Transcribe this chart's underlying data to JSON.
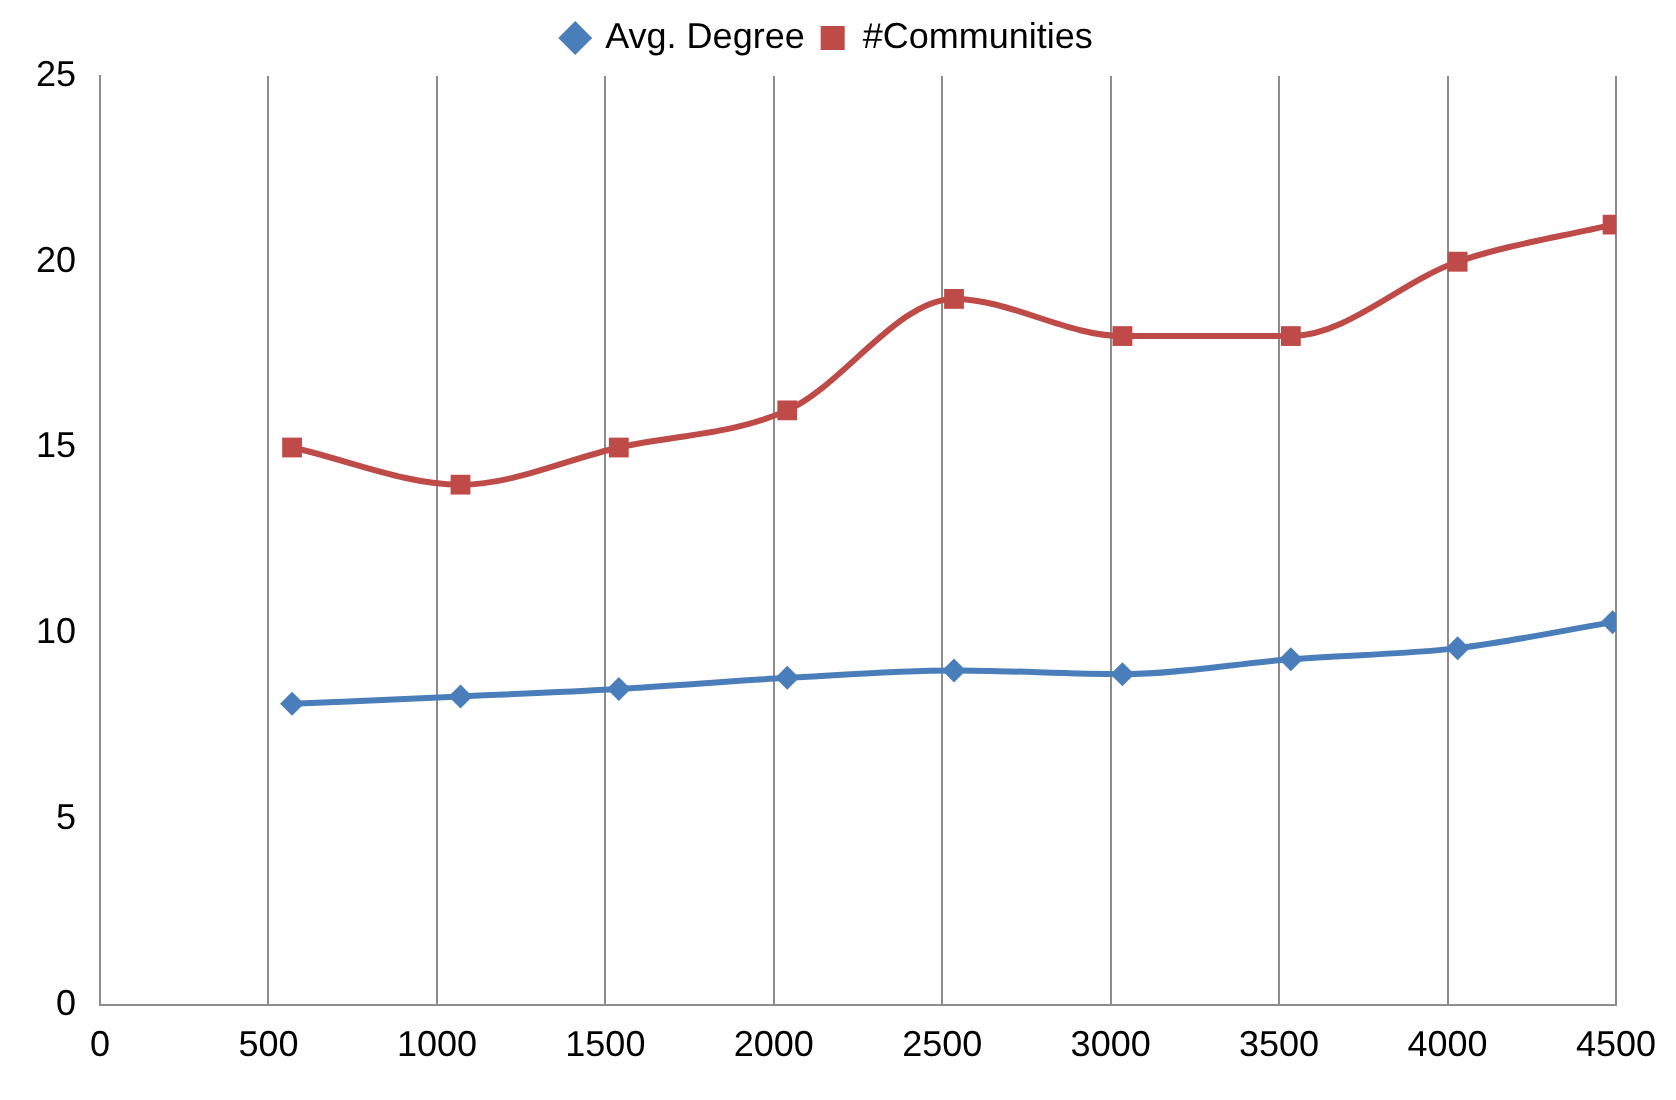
{
  "chart_data": {
    "type": "line",
    "x": [
      570,
      1070,
      1540,
      2040,
      2535,
      3035,
      3535,
      4030,
      4490
    ],
    "series": [
      {
        "name": "Avg. Degree",
        "color": "#4a7ebb",
        "marker": "diamond",
        "values": [
          8.1,
          8.3,
          8.5,
          8.8,
          9.0,
          8.9,
          9.3,
          9.6,
          10.3
        ]
      },
      {
        "name": "#Communities",
        "color": "#be4b48",
        "marker": "square",
        "values": [
          15,
          14,
          15,
          16,
          19,
          18,
          18,
          20,
          21
        ]
      }
    ],
    "xlim": [
      0,
      4500
    ],
    "xticks": [
      0,
      500,
      1000,
      1500,
      2000,
      2500,
      3000,
      3500,
      4000,
      4500
    ],
    "ylim": [
      0,
      25
    ],
    "yticks": [
      0,
      5,
      10,
      15,
      20,
      25
    ],
    "grid": "x",
    "legend": "top"
  }
}
